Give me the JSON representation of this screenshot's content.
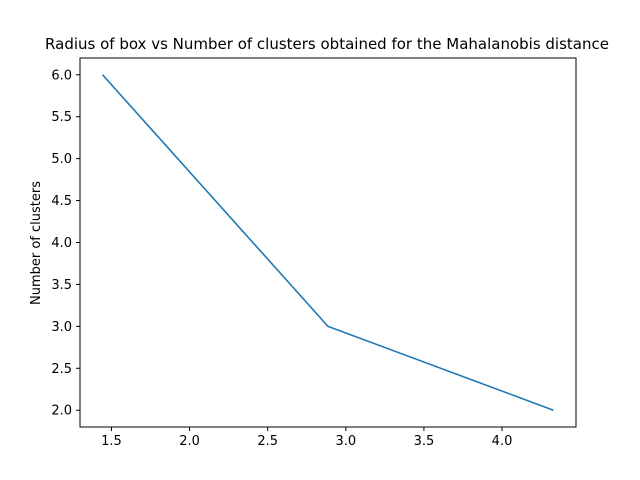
{
  "chart_data": {
    "type": "line",
    "title": "Radius of box vs Number of clusters obtained for the Mahalanobis distance",
    "xlabel": "",
    "ylabel": "Number of clusters",
    "series": [
      {
        "x": [
          1.443,
          2.886,
          4.329
        ],
        "y": [
          6.0,
          3.0,
          2.0
        ],
        "color": "#1f77b4"
      }
    ],
    "xlim": [
      1.2985,
      4.4735
    ],
    "ylim": [
      1.8,
      6.2
    ],
    "xticks": [
      1.5,
      2.0,
      2.5,
      3.0,
      3.5,
      4.0
    ],
    "xtick_labels": [
      "1.5",
      "2.0",
      "2.5",
      "3.0",
      "3.5",
      "4.0"
    ],
    "yticks": [
      2.0,
      2.5,
      3.0,
      3.5,
      4.0,
      4.5,
      5.0,
      5.5,
      6.0
    ],
    "ytick_labels": [
      "2.0",
      "2.5",
      "3.0",
      "3.5",
      "4.0",
      "4.5",
      "5.0",
      "5.5",
      "6.0"
    ],
    "grid": false,
    "legend": false
  }
}
